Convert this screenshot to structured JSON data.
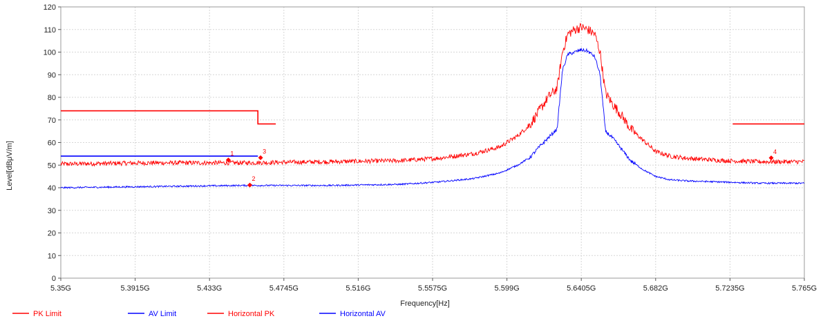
{
  "chart_data": {
    "type": "line",
    "title": "",
    "xlabel": "Frequency[Hz]",
    "ylabel": "Level[dBμV/m]",
    "xlim": [
      5.35,
      5.765
    ],
    "ylim": [
      0,
      120
    ],
    "x_unit": "GHz",
    "grid": true,
    "legend_position": "bottom",
    "x_ticks": [
      {
        "value": 5.35,
        "label": "5.35G"
      },
      {
        "value": 5.3915,
        "label": "5.3915G"
      },
      {
        "value": 5.433,
        "label": "5.433G"
      },
      {
        "value": 5.4745,
        "label": "5.4745G"
      },
      {
        "value": 5.516,
        "label": "5.516G"
      },
      {
        "value": 5.5575,
        "label": "5.5575G"
      },
      {
        "value": 5.599,
        "label": "5.599G"
      },
      {
        "value": 5.6405,
        "label": "5.6405G"
      },
      {
        "value": 5.682,
        "label": "5.682G"
      },
      {
        "value": 5.7235,
        "label": "5.7235G"
      },
      {
        "value": 5.765,
        "label": "5.765G"
      }
    ],
    "y_ticks": [
      {
        "value": 0,
        "label": "0"
      },
      {
        "value": 10,
        "label": "10"
      },
      {
        "value": 20,
        "label": "20"
      },
      {
        "value": 30,
        "label": "30"
      },
      {
        "value": 40,
        "label": "40"
      },
      {
        "value": 50,
        "label": "50"
      },
      {
        "value": 60,
        "label": "60"
      },
      {
        "value": 70,
        "label": "70"
      },
      {
        "value": 80,
        "label": "80"
      },
      {
        "value": 90,
        "label": "90"
      },
      {
        "value": 100,
        "label": "100"
      },
      {
        "value": 110,
        "label": "110"
      },
      {
        "value": 120,
        "label": "120"
      }
    ],
    "series": [
      {
        "name": "PK Limit",
        "color": "#ff0000",
        "style": "step",
        "segments": [
          {
            "x": [
              5.35,
              5.46,
              5.46,
              5.47
            ],
            "y": [
              74,
              74,
              68.2,
              68.2
            ]
          },
          {
            "x": [
              5.725,
              5.765
            ],
            "y": [
              68.2,
              68.2
            ]
          }
        ]
      },
      {
        "name": "AV Limit",
        "color": "#0000ff",
        "style": "step",
        "segments": [
          {
            "x": [
              5.35,
              5.46
            ],
            "y": [
              54,
              54
            ]
          }
        ]
      },
      {
        "name": "Horizontal PK",
        "color": "#ff0000",
        "style": "noisy",
        "x": [
          5.35,
          5.4,
          5.45,
          5.5,
          5.54,
          5.56,
          5.58,
          5.595,
          5.605,
          5.612,
          5.617,
          5.622,
          5.627,
          5.63,
          5.633,
          5.637,
          5.6405,
          5.644,
          5.648,
          5.651,
          5.654,
          5.658,
          5.663,
          5.668,
          5.675,
          5.682,
          5.69,
          5.7,
          5.72,
          5.74,
          5.765
        ],
        "y": [
          50.5,
          51,
          51,
          51.5,
          52,
          53,
          55,
          58,
          63,
          68,
          74,
          80,
          84,
          100,
          108,
          110,
          111,
          110,
          108,
          100,
          82,
          77,
          72,
          66,
          61,
          56,
          54,
          53,
          52,
          51.5,
          51.5
        ]
      },
      {
        "name": "Horizontal AV",
        "color": "#0000ff",
        "style": "noisy",
        "x": [
          5.35,
          5.4,
          5.45,
          5.5,
          5.54,
          5.56,
          5.58,
          5.595,
          5.605,
          5.612,
          5.617,
          5.622,
          5.627,
          5.63,
          5.633,
          5.637,
          5.6405,
          5.644,
          5.648,
          5.651,
          5.654,
          5.658,
          5.663,
          5.668,
          5.675,
          5.682,
          5.69,
          5.7,
          5.72,
          5.74,
          5.765
        ],
        "y": [
          40,
          40.5,
          41,
          41,
          41.5,
          42.5,
          44,
          46.5,
          50,
          53.5,
          58,
          62,
          66,
          92,
          99,
          100,
          101,
          100.5,
          98,
          90,
          65,
          62,
          57,
          52,
          48,
          45,
          43.5,
          43,
          42.5,
          42,
          42
        ]
      }
    ],
    "markers": [
      {
        "label": "1",
        "x": 5.4435,
        "y": 52.3,
        "color": "#ff0000"
      },
      {
        "label": "2",
        "x": 5.4555,
        "y": 41.2,
        "color": "#ff0000"
      },
      {
        "label": "3",
        "x": 5.4615,
        "y": 53.3,
        "color": "#ff0000"
      },
      {
        "label": "4",
        "x": 5.7465,
        "y": 53.2,
        "color": "#ff0000"
      }
    ]
  }
}
